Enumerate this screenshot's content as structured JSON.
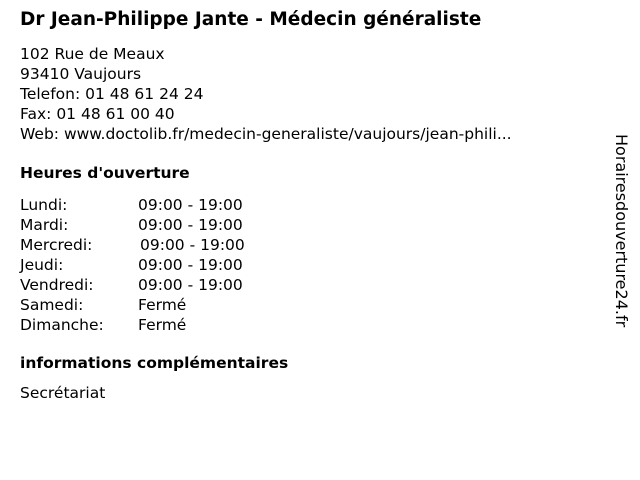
{
  "title": "Dr Jean-Philippe Jante - Médecin généraliste",
  "address": {
    "street": "102 Rue de Meaux",
    "city": "93410 Vaujours",
    "phone": "Telefon: 01 48 61 24 24",
    "fax": "Fax: 01 48 61 00 40",
    "web": "Web: www.doctolib.fr/medecin-generaliste/vaujours/jean-phili..."
  },
  "hours_heading": "Heures d'ouverture",
  "hours": [
    {
      "day": "Lundi:",
      "time": "09:00 - 19:00"
    },
    {
      "day": "Mardi:",
      "time": "09:00 - 19:00"
    },
    {
      "day": "Mercredi:",
      "time": "09:00 - 19:00"
    },
    {
      "day": "Jeudi:",
      "time": "09:00 - 19:00"
    },
    {
      "day": "Vendredi:",
      "time": "09:00 - 19:00"
    },
    {
      "day": "Samedi:",
      "time": "Fermé"
    },
    {
      "day": "Dimanche:",
      "time": "Fermé"
    }
  ],
  "extra_heading": "informations complémentaires",
  "extra": "Secrétariat",
  "watermark": "Horairesdouverture24.fr"
}
